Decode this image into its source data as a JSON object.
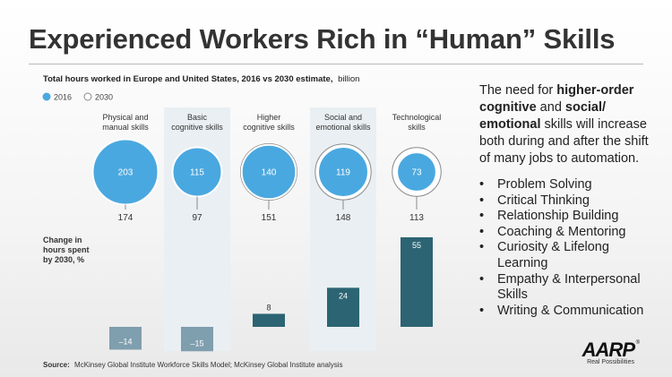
{
  "slide": {
    "title": "Experienced Workers Rich in “Human” Skills"
  },
  "chart_data": {
    "type": "bar",
    "title": "Total hours worked in Europe and United States, 2016 vs 2030 estimate,",
    "title_unit": "billion",
    "legend": [
      {
        "label": "2016",
        "color": "#4aa8e0",
        "filled": true
      },
      {
        "label": "2030",
        "color": "#8a8a8a",
        "filled": false
      }
    ],
    "categories": [
      [
        "Physical and",
        "manual skills"
      ],
      [
        "Basic",
        "cognitive skills"
      ],
      [
        "Higher",
        "cognitive skills"
      ],
      [
        "Social and",
        "emotional skills"
      ],
      [
        "Technological",
        "skills"
      ]
    ],
    "series": [
      {
        "name": "2016",
        "values": [
          203,
          115,
          140,
          119,
          73
        ]
      },
      {
        "name": "2030",
        "values": [
          174,
          97,
          151,
          148,
          113
        ]
      }
    ],
    "change_label": [
      "Change in",
      "hours spent",
      "by 2030, %"
    ],
    "change_values": [
      -14,
      -15,
      8,
      24,
      55
    ],
    "change_labels": [
      "–14",
      "–15",
      "8",
      "24",
      "55"
    ],
    "colors": {
      "bubble_2016": "#4aa8e0",
      "negative_bar": "#7f9eae",
      "positive_bar": "#2c6473",
      "shade": "#e9eff3"
    },
    "source_label": "Source:",
    "source_text": "McKinsey Global Institute Workforce Skills Model; McKinsey Global Institute analysis"
  },
  "side": {
    "intro": [
      {
        "text": "The need for ",
        "bold": false
      },
      {
        "text": "higher-order cognitive",
        "bold": true
      },
      {
        "text": " and ",
        "bold": false
      },
      {
        "text": "social/ emotional",
        "bold": true
      },
      {
        "text": " skills will increase both during and after the shift of many jobs to automation.",
        "bold": false
      }
    ],
    "bullet_char": "•",
    "bullets": [
      "Problem Solving",
      "Critical Thinking",
      "Relationship Building",
      "Coaching & Mentoring",
      "Curiosity & Lifelong Learning",
      "Empathy & Interpersonal Skills",
      "Writing & Communication"
    ]
  },
  "logo": {
    "mark": "AARP",
    "reg": "®",
    "tagline": "Real Possibilities"
  }
}
